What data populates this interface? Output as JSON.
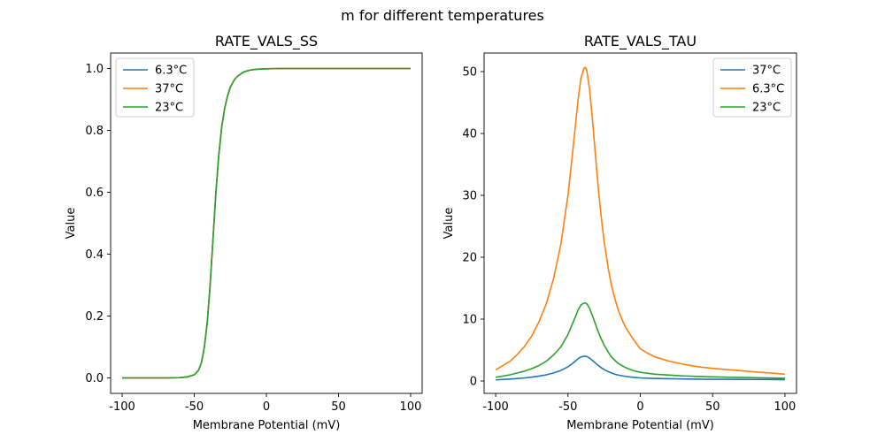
{
  "figure_title": "m for different temperatures",
  "chart_data": [
    {
      "type": "line",
      "title": "RATE_VALS_SS",
      "xlabel": "Membrane Potential (mV)",
      "ylabel": "Value",
      "xlim": [
        -108,
        108
      ],
      "ylim": [
        -0.05,
        1.05
      ],
      "xticks": [
        -100,
        -50,
        0,
        50,
        100
      ],
      "yticks": [
        0.0,
        0.2,
        0.4,
        0.6,
        0.8,
        1.0
      ],
      "ytick_labels": [
        "0.0",
        "0.2",
        "0.4",
        "0.6",
        "0.8",
        "1.0"
      ],
      "legend_position": "top-left",
      "x": [
        -100,
        -90,
        -80,
        -70,
        -60,
        -55,
        -50,
        -47,
        -45,
        -43,
        -41,
        -39,
        -37,
        -35,
        -33,
        -31,
        -29,
        -27,
        -25,
        -22,
        -20,
        -17,
        -15,
        -12,
        -10,
        -5,
        0,
        10,
        20,
        40,
        60,
        80,
        100
      ],
      "series": [
        {
          "name": "6.3°C",
          "color": "#1f77b4",
          "values": [
            0.0,
            0.0,
            0.0,
            0.0,
            0.001,
            0.003,
            0.01,
            0.025,
            0.05,
            0.1,
            0.18,
            0.3,
            0.45,
            0.6,
            0.72,
            0.81,
            0.87,
            0.91,
            0.94,
            0.965,
            0.975,
            0.985,
            0.99,
            0.994,
            0.996,
            0.998,
            0.999,
            1.0,
            1.0,
            1.0,
            1.0,
            1.0,
            1.0
          ]
        },
        {
          "name": "37°C",
          "color": "#ff7f0e",
          "values": [
            0.0,
            0.0,
            0.0,
            0.0,
            0.001,
            0.003,
            0.01,
            0.025,
            0.05,
            0.1,
            0.18,
            0.3,
            0.45,
            0.6,
            0.72,
            0.81,
            0.87,
            0.91,
            0.94,
            0.965,
            0.975,
            0.985,
            0.99,
            0.994,
            0.996,
            0.998,
            0.999,
            1.0,
            1.0,
            1.0,
            1.0,
            1.0,
            1.0
          ]
        },
        {
          "name": "23°C",
          "color": "#2ca02c",
          "values": [
            0.0,
            0.0,
            0.0,
            0.0,
            0.001,
            0.003,
            0.01,
            0.025,
            0.05,
            0.1,
            0.18,
            0.3,
            0.45,
            0.6,
            0.72,
            0.81,
            0.87,
            0.91,
            0.94,
            0.965,
            0.975,
            0.985,
            0.99,
            0.994,
            0.996,
            0.998,
            0.999,
            1.0,
            1.0,
            1.0,
            1.0,
            1.0,
            1.0
          ]
        }
      ]
    },
    {
      "type": "line",
      "title": "RATE_VALS_TAU",
      "xlabel": "Membrane Potential (mV)",
      "ylabel": "Value",
      "xlim": [
        -108,
        108
      ],
      "ylim": [
        -2.0,
        53.0
      ],
      "xticks": [
        -100,
        -50,
        0,
        50,
        100
      ],
      "yticks": [
        0,
        10,
        20,
        30,
        40,
        50
      ],
      "ytick_labels": [
        "0",
        "10",
        "20",
        "30",
        "40",
        "50"
      ],
      "legend_position": "top-right",
      "x": [
        -100,
        -90,
        -85,
        -80,
        -75,
        -70,
        -65,
        -60,
        -55,
        -50,
        -47,
        -45,
        -43,
        -41,
        -39,
        -38,
        -37,
        -35,
        -33,
        -31,
        -29,
        -27,
        -25,
        -22,
        -20,
        -17,
        -15,
        -12,
        -10,
        -5,
        0,
        5,
        10,
        20,
        30,
        40,
        50,
        60,
        70,
        80,
        90,
        100
      ],
      "series": [
        {
          "name": "37°C",
          "color": "#1f77b4",
          "values": [
            0.18,
            0.31,
            0.4,
            0.5,
            0.63,
            0.8,
            1.0,
            1.3,
            1.7,
            2.3,
            2.8,
            3.2,
            3.6,
            3.9,
            4.0,
            3.99,
            3.95,
            3.7,
            3.3,
            2.9,
            2.5,
            2.15,
            1.85,
            1.5,
            1.3,
            1.05,
            0.95,
            0.82,
            0.75,
            0.6,
            0.5,
            0.45,
            0.42,
            0.37,
            0.33,
            0.3,
            0.28,
            0.27,
            0.26,
            0.25,
            0.24,
            0.23
          ]
        },
        {
          "name": "6.3°C",
          "color": "#ff7f0e",
          "values": [
            1.8,
            3.2,
            4.3,
            5.6,
            7.3,
            9.6,
            12.5,
            16.5,
            22.0,
            30.0,
            36.5,
            41.0,
            45.5,
            49.0,
            50.5,
            50.7,
            50.2,
            47.0,
            42.0,
            36.5,
            31.0,
            26.5,
            22.5,
            18.0,
            15.5,
            12.8,
            11.3,
            9.6,
            8.6,
            6.8,
            5.2,
            4.5,
            3.9,
            3.2,
            2.7,
            2.3,
            2.05,
            1.85,
            1.65,
            1.45,
            1.3,
            1.1
          ]
        },
        {
          "name": "23°C",
          "color": "#2ca02c",
          "values": [
            0.6,
            1.0,
            1.3,
            1.6,
            2.0,
            2.5,
            3.2,
            4.2,
            5.5,
            7.5,
            9.2,
            10.3,
            11.5,
            12.3,
            12.6,
            12.6,
            12.5,
            11.7,
            10.5,
            9.2,
            7.9,
            6.8,
            5.8,
            4.6,
            3.9,
            3.2,
            2.8,
            2.4,
            2.15,
            1.7,
            1.4,
            1.25,
            1.1,
            0.95,
            0.82,
            0.74,
            0.68,
            0.62,
            0.58,
            0.53,
            0.49,
            0.45
          ]
        }
      ]
    }
  ]
}
